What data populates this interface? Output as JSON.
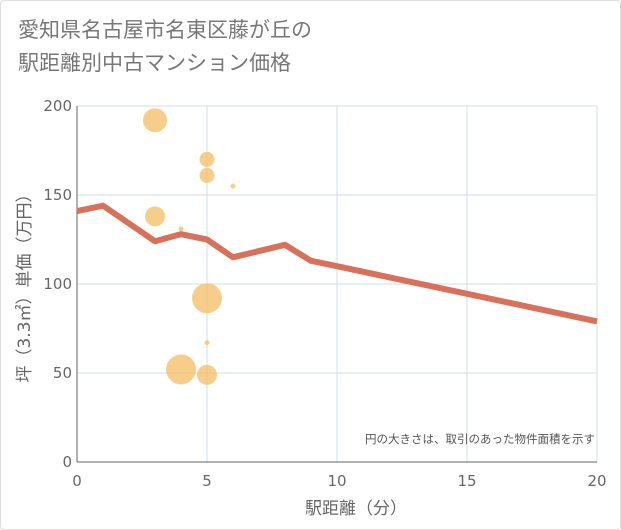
{
  "title": {
    "line1": "愛知県名古屋市名東区藤が丘の",
    "line2": "駅距離別中古マンション価格"
  },
  "note": "円の大きさは、取引のあった物件面積を示す",
  "chart_data": {
    "type": "scatter",
    "xlabel": "駅距離（分）",
    "ylabel": "坪（3.3㎡）単価（万円）",
    "xlim": [
      0,
      20
    ],
    "ylim": [
      0,
      200
    ],
    "x_ticks": [
      0,
      5,
      10,
      15,
      20
    ],
    "y_ticks": [
      0,
      50,
      100,
      150,
      200
    ],
    "grid": true,
    "bubble_color": "#f5c26b",
    "line_color": "#d9705a",
    "bubbles": [
      {
        "x": 3,
        "y": 192,
        "size": 12
      },
      {
        "x": 5,
        "y": 170,
        "size": 7.5
      },
      {
        "x": 5,
        "y": 161,
        "size": 7.5
      },
      {
        "x": 6,
        "y": 155,
        "size": 2.5
      },
      {
        "x": 3,
        "y": 138,
        "size": 10
      },
      {
        "x": 4,
        "y": 131,
        "size": 2.5
      },
      {
        "x": 5,
        "y": 92,
        "size": 15
      },
      {
        "x": 5,
        "y": 67,
        "size": 2.5
      },
      {
        "x": 4,
        "y": 52,
        "size": 15
      },
      {
        "x": 5,
        "y": 49,
        "size": 10
      }
    ],
    "trend_line": {
      "x": [
        0,
        1,
        3,
        4,
        5,
        6,
        8,
        9,
        10,
        20
      ],
      "y": [
        141,
        144,
        124,
        128,
        125,
        115,
        122,
        113,
        110,
        79
      ]
    }
  }
}
